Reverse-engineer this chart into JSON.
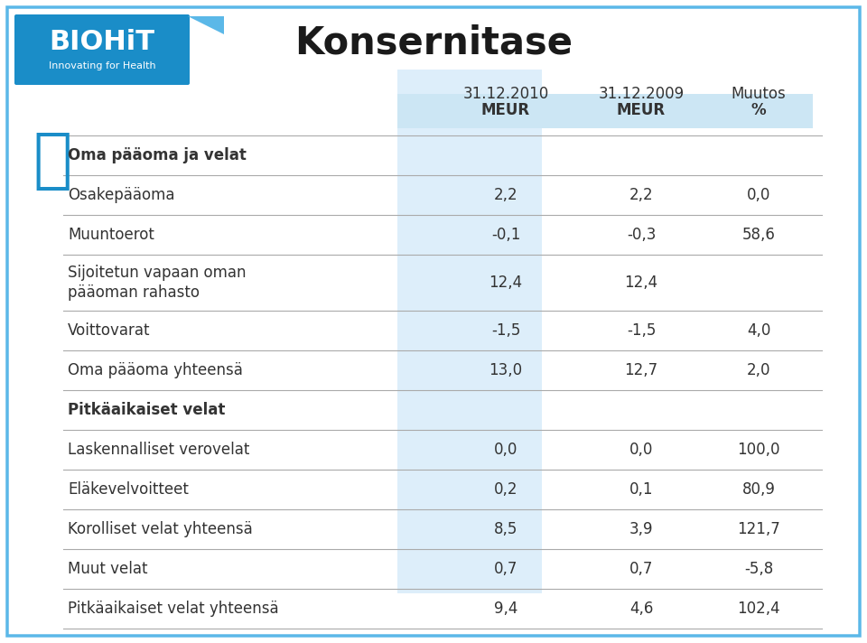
{
  "title": "Konsernitase",
  "col_headers_row1": [
    "31.12.2010",
    "31.12.2009",
    "Muutos"
  ],
  "col_headers_row2": [
    "MEUR",
    "MEUR",
    "%"
  ],
  "rows": [
    {
      "label": "Oma pääoma ja velat",
      "vals": [
        "",
        "",
        ""
      ],
      "bold": true,
      "header": true
    },
    {
      "label": "Osakepääoma",
      "vals": [
        "2,2",
        "2,2",
        "0,0"
      ],
      "bold": false,
      "header": false
    },
    {
      "label": "Muuntoerot",
      "vals": [
        "-0,1",
        "-0,3",
        "58,6"
      ],
      "bold": false,
      "header": false
    },
    {
      "label": "Sijoitetun vapaan oman\npääoman rahasto",
      "vals": [
        "12,4",
        "12,4",
        ""
      ],
      "bold": false,
      "header": false
    },
    {
      "label": "Voittovarat",
      "vals": [
        "-1,5",
        "-1,5",
        "4,0"
      ],
      "bold": false,
      "header": false
    },
    {
      "label": "Oma pääoma yhteensä",
      "vals": [
        "13,0",
        "12,7",
        "2,0"
      ],
      "bold": false,
      "header": false
    },
    {
      "label": "Pitkäaikaiset velat",
      "vals": [
        "",
        "",
        ""
      ],
      "bold": true,
      "header": true
    },
    {
      "label": "Laskennalliset verovelat",
      "vals": [
        "0,0",
        "0,0",
        "100,0"
      ],
      "bold": false,
      "header": false
    },
    {
      "label": "Eläkevelvoitteet",
      "vals": [
        "0,2",
        "0,1",
        "80,9"
      ],
      "bold": false,
      "header": false
    },
    {
      "label": "Korolliset velat yhteensä",
      "vals": [
        "8,5",
        "3,9",
        "121,7"
      ],
      "bold": false,
      "header": false
    },
    {
      "label": "Muut velat",
      "vals": [
        "0,7",
        "0,7",
        "-5,8"
      ],
      "bold": false,
      "header": false
    },
    {
      "label": "Pitkäaikaiset velat yhteensä",
      "vals": [
        "9,4",
        "4,6",
        "102,4"
      ],
      "bold": false,
      "header": false
    }
  ],
  "bg_color": "#ffffff",
  "header_bg": "#cce6f4",
  "col1_bg": "#ddeefa",
  "border_color": "#aaaaaa",
  "title_color": "#1a1a1a",
  "text_color": "#333333",
  "logo_bg": "#1a8dc8",
  "outer_border": "#5bb8e8"
}
